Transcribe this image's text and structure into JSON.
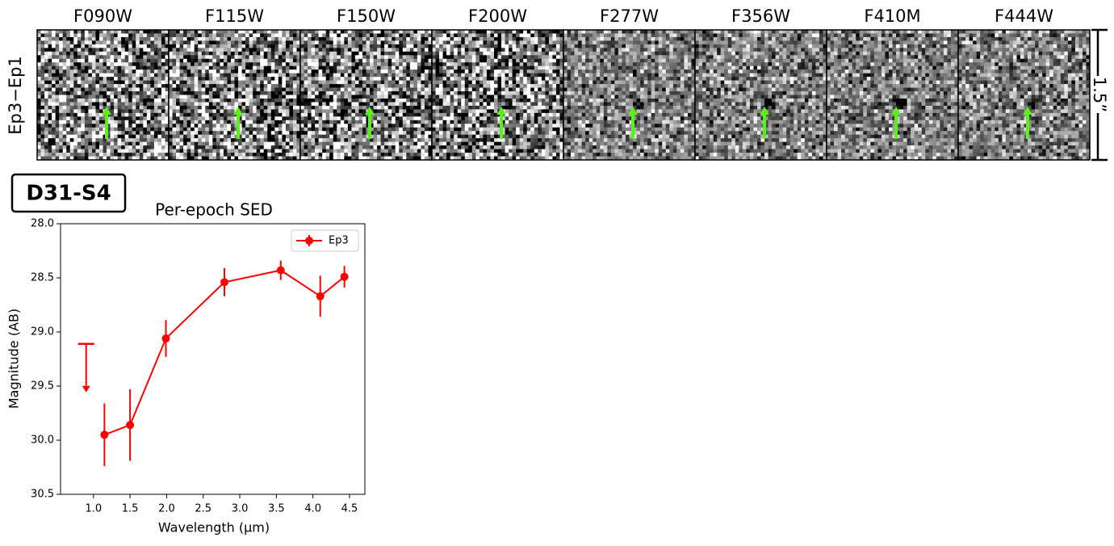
{
  "panels": {
    "row_label": "Ep3−Ep1",
    "filters": [
      "F090W",
      "F115W",
      "F150W",
      "F200W",
      "F277W",
      "F356W",
      "F410M",
      "F444W"
    ],
    "scale_label": "1.5”"
  },
  "source_label": "D31-S4",
  "chart_data": {
    "type": "line",
    "title": "Per-epoch SED",
    "x_label": "Wavelength (μm)",
    "y_label": "Magnitude (AB)",
    "x": [
      1.15,
      1.5,
      1.99,
      2.79,
      3.56,
      4.1,
      4.43
    ],
    "series": [
      {
        "name": "Ep3",
        "color": "#ff0000",
        "values": [
          29.95,
          29.86,
          29.06,
          28.54,
          28.43,
          28.67,
          28.49
        ],
        "errors": [
          0.29,
          0.33,
          0.17,
          0.13,
          0.09,
          0.19,
          0.1
        ]
      }
    ],
    "upper_limits": {
      "x": [
        0.9
      ],
      "values": [
        29.11
      ],
      "color": "#ff0000"
    },
    "xlim": [
      0.55,
      4.71
    ],
    "ylim": [
      28.0,
      30.5
    ],
    "y_inverted": true,
    "xticks": [
      {
        "value": 1.0,
        "label": "1.0"
      },
      1.5,
      {
        "value": 2.0,
        "label": "2.0"
      },
      2.5,
      {
        "value": 3.0,
        "label": "3.0"
      },
      3.5,
      {
        "value": 4.0,
        "label": "4.0"
      },
      4.5
    ],
    "yticks": [
      {
        "value": 28.0,
        "label": "28.0"
      },
      28.5,
      {
        "value": 29.0,
        "label": "29.0"
      },
      29.5,
      {
        "value": 30.0,
        "label": "30.0"
      },
      30.5
    ],
    "legend": "upper right",
    "grid": false
  }
}
